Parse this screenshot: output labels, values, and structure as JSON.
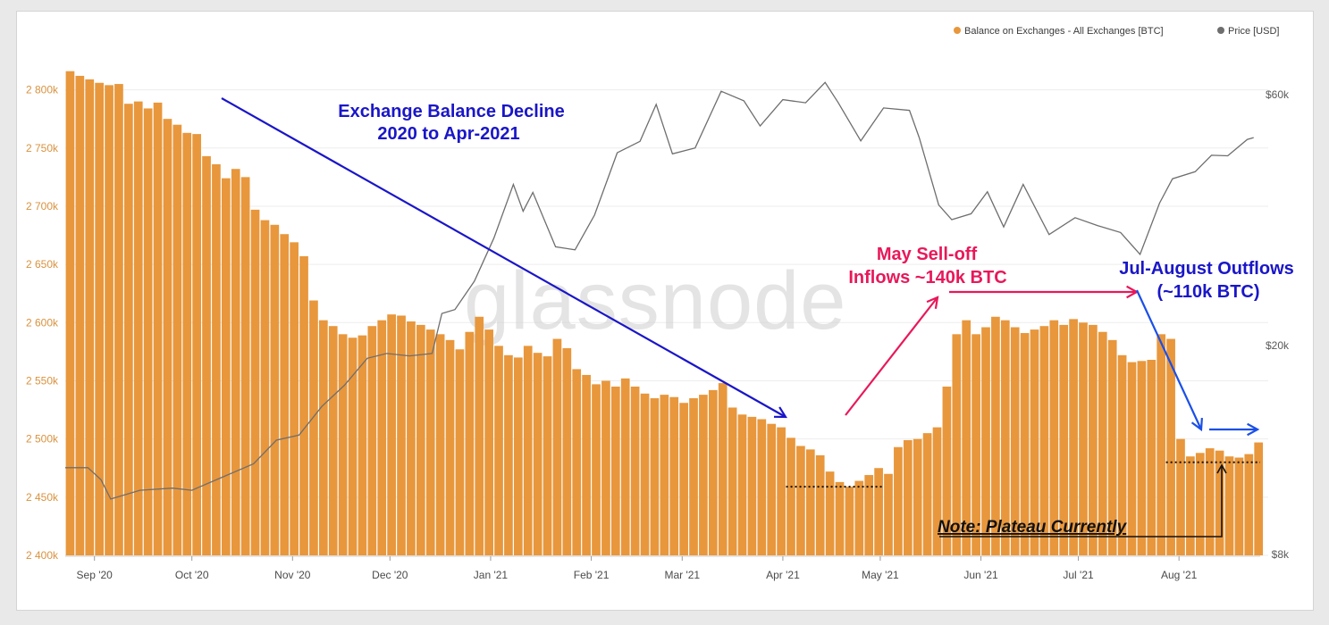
{
  "chart_data": {
    "type": "bar",
    "watermark": "glassnode",
    "legend": {
      "position": "top-right",
      "items": [
        {
          "label": "Balance on Exchanges - All Exchanges [BTC]",
          "color": "#e8973c"
        },
        {
          "label": "Price [USD]",
          "color": "#6e6e6e"
        }
      ]
    },
    "y_left": {
      "ticks": [
        "2 400k",
        "2 450k",
        "2 500k",
        "2 550k",
        "2 600k",
        "2 650k",
        "2 700k",
        "2 750k",
        "2 800k"
      ],
      "tick_values": [
        2400000,
        2450000,
        2500000,
        2550000,
        2600000,
        2650000,
        2700000,
        2750000,
        2800000
      ],
      "ylim": [
        2400000,
        2825000
      ],
      "color": "#d9923f"
    },
    "y_right": {
      "scale": "log",
      "ticks": [
        "$8k",
        "$20k",
        "$60k"
      ],
      "tick_values": [
        8000,
        20000,
        60000
      ]
    },
    "x_ticks": [
      "Sep '20",
      "Oct '20",
      "Nov '20",
      "Dec '20",
      "Jan '21",
      "Feb '21",
      "Mar '21",
      "Apr '21",
      "May '21",
      "Jun '21",
      "Jul '21",
      "Aug '21"
    ],
    "x_tick_dates": [
      "2020-09-01",
      "2020-10-01",
      "2020-11-01",
      "2020-12-01",
      "2021-01-01",
      "2021-02-01",
      "2021-03-01",
      "2021-04-01",
      "2021-05-01",
      "2021-06-01",
      "2021-07-01",
      "2021-08-01"
    ],
    "x_range": [
      "2020-08-23",
      "2021-08-26"
    ],
    "series": [
      {
        "name": "Balance on Exchanges - All Exchanges [BTC]",
        "kind": "bar",
        "color": "#e8973c",
        "points": [
          [
            "2020-08-23",
            2816000
          ],
          [
            "2020-08-26",
            2812000
          ],
          [
            "2020-08-29",
            2809000
          ],
          [
            "2020-09-01",
            2806000
          ],
          [
            "2020-09-04",
            2804000
          ],
          [
            "2020-09-07",
            2805000
          ],
          [
            "2020-09-10",
            2788000
          ],
          [
            "2020-09-13",
            2790000
          ],
          [
            "2020-09-16",
            2784000
          ],
          [
            "2020-09-19",
            2789000
          ],
          [
            "2020-09-22",
            2775000
          ],
          [
            "2020-09-25",
            2770000
          ],
          [
            "2020-09-28",
            2763000
          ],
          [
            "2020-10-01",
            2762000
          ],
          [
            "2020-10-04",
            2743000
          ],
          [
            "2020-10-07",
            2736000
          ],
          [
            "2020-10-10",
            2724000
          ],
          [
            "2020-10-13",
            2732000
          ],
          [
            "2020-10-16",
            2725000
          ],
          [
            "2020-10-19",
            2697000
          ],
          [
            "2020-10-22",
            2688000
          ],
          [
            "2020-10-25",
            2684000
          ],
          [
            "2020-10-28",
            2676000
          ],
          [
            "2020-10-31",
            2669000
          ],
          [
            "2020-11-03",
            2657000
          ],
          [
            "2020-11-06",
            2619000
          ],
          [
            "2020-11-09",
            2602000
          ],
          [
            "2020-11-12",
            2597000
          ],
          [
            "2020-11-15",
            2590000
          ],
          [
            "2020-11-18",
            2587000
          ],
          [
            "2020-11-21",
            2589000
          ],
          [
            "2020-11-24",
            2597000
          ],
          [
            "2020-11-27",
            2602000
          ],
          [
            "2020-11-30",
            2607000
          ],
          [
            "2020-12-03",
            2606000
          ],
          [
            "2020-12-06",
            2601000
          ],
          [
            "2020-12-09",
            2598000
          ],
          [
            "2020-12-12",
            2594000
          ],
          [
            "2020-12-15",
            2590000
          ],
          [
            "2020-12-18",
            2585000
          ],
          [
            "2020-12-21",
            2577000
          ],
          [
            "2020-12-24",
            2592000
          ],
          [
            "2020-12-27",
            2605000
          ],
          [
            "2020-12-30",
            2594000
          ],
          [
            "2021-01-02",
            2580000
          ],
          [
            "2021-01-05",
            2572000
          ],
          [
            "2021-01-08",
            2570000
          ],
          [
            "2021-01-11",
            2580000
          ],
          [
            "2021-01-14",
            2574000
          ],
          [
            "2021-01-17",
            2571000
          ],
          [
            "2021-01-20",
            2586000
          ],
          [
            "2021-01-23",
            2578000
          ],
          [
            "2021-01-26",
            2560000
          ],
          [
            "2021-01-29",
            2555000
          ],
          [
            "2021-02-01",
            2547000
          ],
          [
            "2021-02-04",
            2550000
          ],
          [
            "2021-02-07",
            2545000
          ],
          [
            "2021-02-10",
            2552000
          ],
          [
            "2021-02-13",
            2545000
          ],
          [
            "2021-02-16",
            2539000
          ],
          [
            "2021-02-19",
            2535000
          ],
          [
            "2021-02-22",
            2538000
          ],
          [
            "2021-02-25",
            2536000
          ],
          [
            "2021-02-28",
            2531000
          ],
          [
            "2021-03-03",
            2535000
          ],
          [
            "2021-03-06",
            2538000
          ],
          [
            "2021-03-09",
            2542000
          ],
          [
            "2021-03-12",
            2548000
          ],
          [
            "2021-03-15",
            2527000
          ],
          [
            "2021-03-18",
            2521000
          ],
          [
            "2021-03-21",
            2519000
          ],
          [
            "2021-03-24",
            2517000
          ],
          [
            "2021-03-27",
            2513000
          ],
          [
            "2021-03-30",
            2510000
          ],
          [
            "2021-04-02",
            2501000
          ],
          [
            "2021-04-05",
            2494000
          ],
          [
            "2021-04-08",
            2491000
          ],
          [
            "2021-04-11",
            2486000
          ],
          [
            "2021-04-14",
            2472000
          ],
          [
            "2021-04-17",
            2463000
          ],
          [
            "2021-04-20",
            2459000
          ],
          [
            "2021-04-23",
            2464000
          ],
          [
            "2021-04-26",
            2469000
          ],
          [
            "2021-04-29",
            2475000
          ],
          [
            "2021-05-02",
            2470000
          ],
          [
            "2021-05-05",
            2493000
          ],
          [
            "2021-05-08",
            2499000
          ],
          [
            "2021-05-11",
            2500000
          ],
          [
            "2021-05-14",
            2505000
          ],
          [
            "2021-05-17",
            2510000
          ],
          [
            "2021-05-20",
            2545000
          ],
          [
            "2021-05-23",
            2590000
          ],
          [
            "2021-05-26",
            2602000
          ],
          [
            "2021-05-29",
            2590000
          ],
          [
            "2021-06-01",
            2596000
          ],
          [
            "2021-06-04",
            2605000
          ],
          [
            "2021-06-07",
            2602000
          ],
          [
            "2021-06-10",
            2596000
          ],
          [
            "2021-06-13",
            2591000
          ],
          [
            "2021-06-16",
            2594000
          ],
          [
            "2021-06-19",
            2597000
          ],
          [
            "2021-06-22",
            2602000
          ],
          [
            "2021-06-25",
            2598000
          ],
          [
            "2021-06-28",
            2603000
          ],
          [
            "2021-07-01",
            2600000
          ],
          [
            "2021-07-04",
            2598000
          ],
          [
            "2021-07-07",
            2592000
          ],
          [
            "2021-07-10",
            2585000
          ],
          [
            "2021-07-13",
            2572000
          ],
          [
            "2021-07-16",
            2566000
          ],
          [
            "2021-07-19",
            2567000
          ],
          [
            "2021-07-22",
            2568000
          ],
          [
            "2021-07-25",
            2590000
          ],
          [
            "2021-07-28",
            2586000
          ],
          [
            "2021-07-31",
            2500000
          ],
          [
            "2021-08-03",
            2485000
          ],
          [
            "2021-08-06",
            2488000
          ],
          [
            "2021-08-09",
            2492000
          ],
          [
            "2021-08-12",
            2490000
          ],
          [
            "2021-08-15",
            2485000
          ],
          [
            "2021-08-18",
            2484000
          ],
          [
            "2021-08-21",
            2487000
          ],
          [
            "2021-08-24",
            2497000
          ]
        ]
      },
      {
        "name": "Price [USD]",
        "kind": "line",
        "color": "#6e6e6e",
        "points": [
          [
            "2020-08-23",
            11700
          ],
          [
            "2020-08-30",
            11700
          ],
          [
            "2020-09-03",
            11100
          ],
          [
            "2020-09-06",
            10200
          ],
          [
            "2020-09-15",
            10600
          ],
          [
            "2020-09-25",
            10700
          ],
          [
            "2020-10-01",
            10600
          ],
          [
            "2020-10-10",
            11200
          ],
          [
            "2020-10-20",
            11900
          ],
          [
            "2020-10-27",
            13200
          ],
          [
            "2020-11-03",
            13500
          ],
          [
            "2020-11-10",
            15300
          ],
          [
            "2020-11-17",
            16800
          ],
          [
            "2020-11-24",
            18900
          ],
          [
            "2020-11-30",
            19300
          ],
          [
            "2020-12-07",
            19100
          ],
          [
            "2020-12-14",
            19300
          ],
          [
            "2020-12-17",
            23000
          ],
          [
            "2020-12-21",
            23400
          ],
          [
            "2020-12-27",
            26500
          ],
          [
            "2021-01-02",
            32000
          ],
          [
            "2021-01-08",
            40500
          ],
          [
            "2021-01-11",
            36000
          ],
          [
            "2021-01-14",
            39100
          ],
          [
            "2021-01-21",
            30800
          ],
          [
            "2021-01-27",
            30400
          ],
          [
            "2021-02-02",
            35400
          ],
          [
            "2021-02-09",
            46500
          ],
          [
            "2021-02-16",
            48900
          ],
          [
            "2021-02-21",
            57500
          ],
          [
            "2021-02-26",
            46300
          ],
          [
            "2021-03-05",
            47500
          ],
          [
            "2021-03-13",
            60900
          ],
          [
            "2021-03-20",
            58400
          ],
          [
            "2021-03-25",
            52300
          ],
          [
            "2021-04-01",
            58700
          ],
          [
            "2021-04-08",
            57900
          ],
          [
            "2021-04-14",
            63300
          ],
          [
            "2021-04-18",
            58000
          ],
          [
            "2021-04-25",
            49000
          ],
          [
            "2021-05-02",
            56600
          ],
          [
            "2021-05-10",
            56000
          ],
          [
            "2021-05-13",
            49700
          ],
          [
            "2021-05-19",
            37000
          ],
          [
            "2021-05-23",
            34700
          ],
          [
            "2021-05-29",
            35600
          ],
          [
            "2021-06-03",
            39200
          ],
          [
            "2021-06-08",
            33600
          ],
          [
            "2021-06-14",
            40500
          ],
          [
            "2021-06-22",
            32500
          ],
          [
            "2021-06-30",
            35000
          ],
          [
            "2021-07-07",
            33800
          ],
          [
            "2021-07-14",
            32800
          ],
          [
            "2021-07-20",
            29800
          ],
          [
            "2021-07-26",
            37300
          ],
          [
            "2021-07-30",
            41500
          ],
          [
            "2021-08-06",
            42800
          ],
          [
            "2021-08-11",
            46000
          ],
          [
            "2021-08-16",
            45900
          ],
          [
            "2021-08-22",
            49300
          ],
          [
            "2021-08-24",
            49700
          ]
        ]
      }
    ],
    "annotations": [
      {
        "text": "Exchange Balance Decline",
        "color": "#1a16c8"
      },
      {
        "text": "2020 to Apr-2021",
        "color": "#1a16c8"
      },
      {
        "text": "May Sell-off",
        "color": "#e8185a"
      },
      {
        "text": "Inflows ~140k BTC",
        "color": "#e8185a"
      },
      {
        "text": "Jul-August Outflows",
        "color": "#1a16c8"
      },
      {
        "text": "(~110k BTC)",
        "color": "#1a16c8"
      },
      {
        "text": "Note: Plateau Currently",
        "color": "#111111"
      }
    ],
    "reference_levels": [
      {
        "from": "2021-04-02",
        "to": "2021-05-02",
        "value": 2459000
      },
      {
        "from": "2021-07-28",
        "to": "2021-08-26",
        "value": 2480000
      }
    ]
  }
}
